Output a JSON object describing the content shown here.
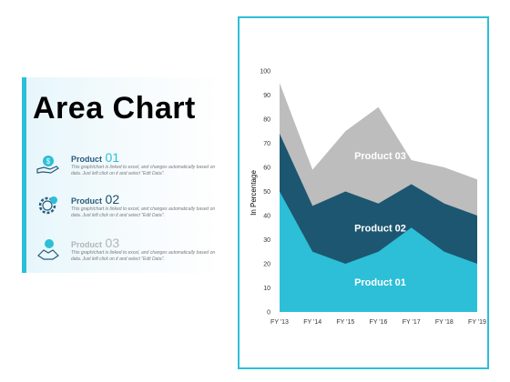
{
  "slide": {
    "title": "Area Chart"
  },
  "items": [
    {
      "label": "Product",
      "number": "01",
      "description": "This graph/chart is linked to excel, and changes automatically based on data. Just left click on it and select \"Edit Data\"."
    },
    {
      "label": "Product",
      "number": "02",
      "description": "This graph/chart is linked to excel, and changes automatically based on data. Just left click on it and select \"Edit Data\"."
    },
    {
      "label": "Product",
      "number": "03",
      "description": "This graph/chart is linked to excel, and changes automatically based on data. Just left click on it and select \"Edit Data\"."
    }
  ],
  "colors": {
    "accent": "#2cbfd7",
    "product_01": "#2cbfd7",
    "product_02": "#1d5670",
    "product_03": "#bdbdbd"
  },
  "icons": [
    "hand-money-icon",
    "gear-dollar-icon",
    "handshake-icon"
  ],
  "chart_data": {
    "type": "area",
    "stacked": false,
    "categories": [
      "FY '13",
      "FY '14",
      "FY '15",
      "FY '16",
      "FY '17",
      "FY '18",
      "FY '19"
    ],
    "series": [
      {
        "name": "Product 03",
        "values": [
          95,
          59,
          75,
          85,
          63,
          60,
          55
        ]
      },
      {
        "name": "Product 02",
        "values": [
          74,
          44,
          50,
          45,
          53,
          45,
          40
        ]
      },
      {
        "name": "Product 01",
        "values": [
          50,
          25,
          20,
          25,
          35,
          25,
          20
        ]
      }
    ],
    "ylabel": "In Percentage",
    "xlabel": "",
    "ylim": [
      0,
      100
    ],
    "yticks": [
      0,
      10,
      20,
      30,
      40,
      50,
      60,
      70,
      80,
      90,
      100
    ],
    "grid": false,
    "legend": "in-area labels"
  }
}
